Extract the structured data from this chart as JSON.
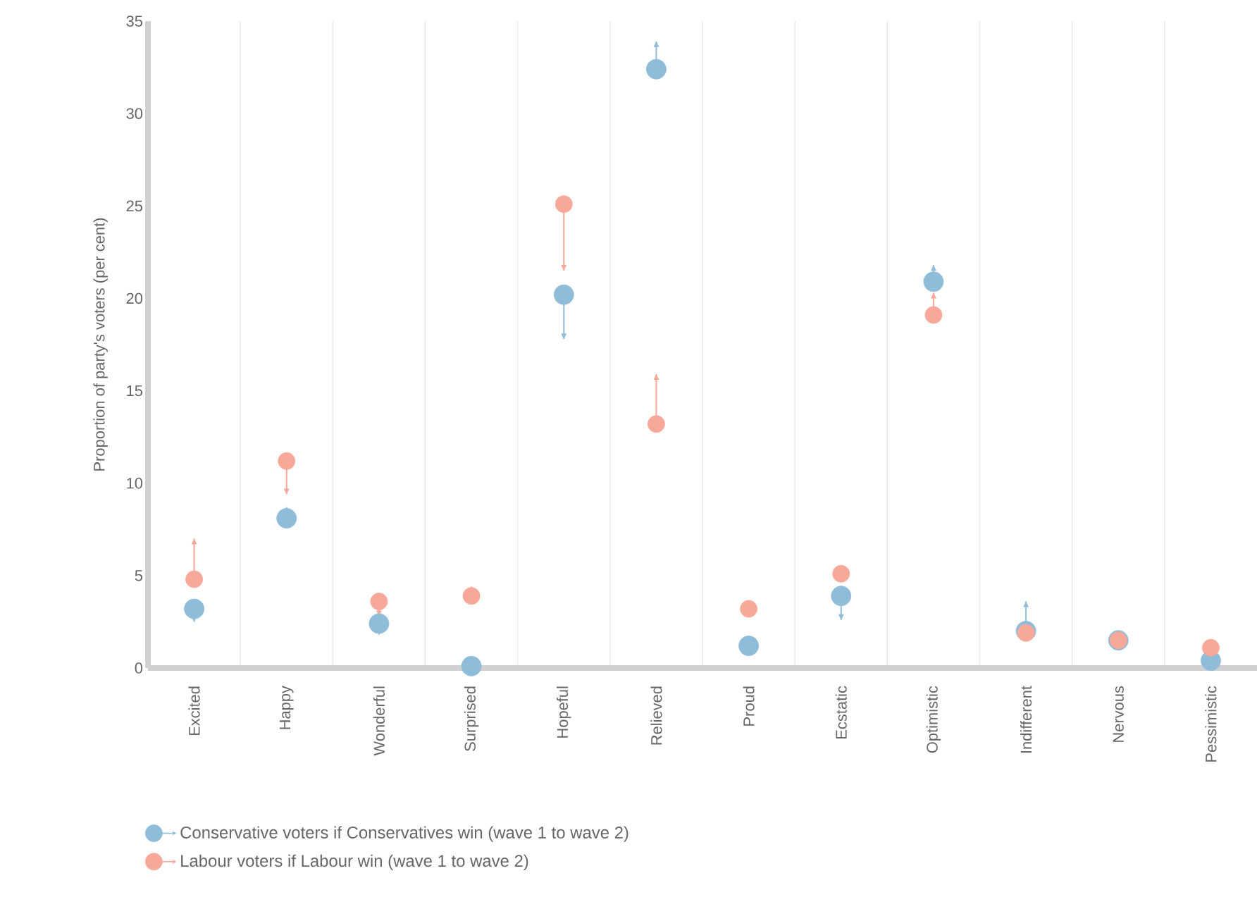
{
  "chart_data": {
    "type": "scatter",
    "categories": [
      "Excited",
      "Happy",
      "Wonderful",
      "Surprised",
      "Hopeful",
      "Relieved",
      "Proud",
      "Ecstatic",
      "Optimistic",
      "Indifferent",
      "Nervous",
      "Pessimistic"
    ],
    "series": [
      {
        "name": "Conservative voters if Conservatives win (wave 1 to wave 2)",
        "color": "#8fbcd9",
        "values": [
          3.2,
          8.1,
          2.4,
          0.1,
          20.2,
          32.4,
          1.2,
          3.9,
          20.9,
          2.0,
          1.5,
          0.4
        ],
        "errors": [
          [
            2.5,
            3.2
          ],
          [
            8.1,
            8.7
          ],
          [
            1.8,
            2.4
          ],
          null,
          [
            17.8,
            20.2
          ],
          [
            32.4,
            33.9
          ],
          null,
          [
            2.6,
            3.9
          ],
          [
            20.9,
            21.8
          ],
          [
            2.0,
            3.6
          ],
          null,
          null
        ]
      },
      {
        "name": "Labour voters if Labour win (wave 1 to wave 2)",
        "color": "#f7a899",
        "values": [
          4.8,
          11.2,
          3.6,
          3.9,
          25.1,
          13.2,
          3.2,
          5.1,
          19.1,
          1.9,
          1.5,
          1.1
        ],
        "errors": [
          [
            4.8,
            7.0
          ],
          [
            9.4,
            11.2
          ],
          [
            2.8,
            3.6
          ],
          [
            3.9,
            4.4
          ],
          [
            21.5,
            25.1
          ],
          [
            13.2,
            15.9
          ],
          [
            2.9,
            3.2
          ],
          [
            4.8,
            5.1
          ],
          [
            19.1,
            20.3
          ],
          [
            1.9,
            2.2
          ],
          [
            1.5,
            1.8
          ],
          [
            0.7,
            1.1
          ]
        ]
      }
    ],
    "ylabel": "Proportion of party's voters (per cent)",
    "ylim": [
      0,
      35
    ],
    "yticks": [
      0,
      5,
      10,
      15,
      20,
      25,
      30,
      35
    ],
    "grid": "x",
    "legend": "bottom left",
    "marker": "circle"
  }
}
